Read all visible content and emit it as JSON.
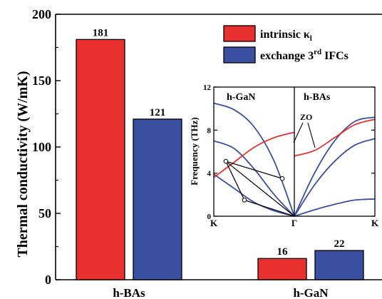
{
  "chart_data": [
    {
      "type": "bar",
      "ylabel": "Thermal conductivity (W/mK)",
      "ylim": [
        0,
        200
      ],
      "yticks": [
        0,
        50,
        100,
        150,
        200
      ],
      "categories": [
        "h-BAs",
        "h-GaN"
      ],
      "series": [
        {
          "name": "intrinsic κ",
          "name_subscript": "l",
          "color": "#e8312f",
          "values": [
            181,
            16
          ]
        },
        {
          "name": "exchange 3",
          "name_superscript": "rd",
          "name_suffix": " IFCs",
          "color": "#3a4fa0",
          "values": [
            121,
            22
          ]
        }
      ],
      "data_labels": [
        "181",
        "121",
        "16",
        "22"
      ],
      "legend_position": "top-right"
    },
    {
      "type": "line",
      "panels": [
        "h-GaN",
        "h-BAs"
      ],
      "ylabel": "Frequency (THz)",
      "ylim": [
        0,
        12
      ],
      "yticks": [
        0,
        4,
        8,
        12
      ],
      "xticks": [
        "K",
        "Γ",
        "K"
      ],
      "annotation": "ZO",
      "colors": {
        "highlight": "#e8312f",
        "branch": "#3a4fa0"
      },
      "gan_branches": [
        {
          "highlight": false,
          "values": [
            [
              0,
              10.5
            ],
            [
              0.25,
              9.9
            ],
            [
              0.5,
              8.3
            ],
            [
              0.75,
              5.1
            ],
            [
              1,
              0
            ]
          ]
        },
        {
          "highlight": false,
          "values": [
            [
              0,
              7.0
            ],
            [
              0.25,
              6.3
            ],
            [
              0.5,
              4.4
            ],
            [
              0.75,
              2.0
            ],
            [
              1,
              0
            ]
          ]
        },
        {
          "highlight": false,
          "values": [
            [
              0,
              3.9
            ],
            [
              0.25,
              2.6
            ],
            [
              0.5,
              1.3
            ],
            [
              0.75,
              0.5
            ],
            [
              1,
              0
            ]
          ]
        },
        {
          "highlight": true,
          "values": [
            [
              0,
              3.6
            ],
            [
              0.25,
              5.0
            ],
            [
              0.5,
              6.4
            ],
            [
              0.75,
              7.3
            ],
            [
              1,
              7.8
            ]
          ]
        }
      ],
      "bas_branches": [
        {
          "highlight": false,
          "values": [
            [
              0,
              0
            ],
            [
              0.25,
              4.0
            ],
            [
              0.5,
              7.0
            ],
            [
              0.75,
              8.8
            ],
            [
              1,
              9.2
            ]
          ]
        },
        {
          "highlight": false,
          "values": [
            [
              0,
              0
            ],
            [
              0.25,
              2.9
            ],
            [
              0.5,
              5.1
            ],
            [
              0.75,
              6.6
            ],
            [
              1,
              7.2
            ]
          ]
        },
        {
          "highlight": false,
          "values": [
            [
              0,
              0
            ],
            [
              0.25,
              0.6
            ],
            [
              0.5,
              1.1
            ],
            [
              0.75,
              1.5
            ],
            [
              1,
              1.6
            ]
          ]
        },
        {
          "highlight": true,
          "values": [
            [
              0,
              5.6
            ],
            [
              0.25,
              6.1
            ],
            [
              0.5,
              7.3
            ],
            [
              0.75,
              8.5
            ],
            [
              1,
              9.0
            ]
          ]
        }
      ],
      "scattering_points": [
        [
          0.15,
          5.1
        ],
        [
          0.38,
          1.5
        ],
        [
          0.85,
          3.5
        ]
      ]
    }
  ]
}
